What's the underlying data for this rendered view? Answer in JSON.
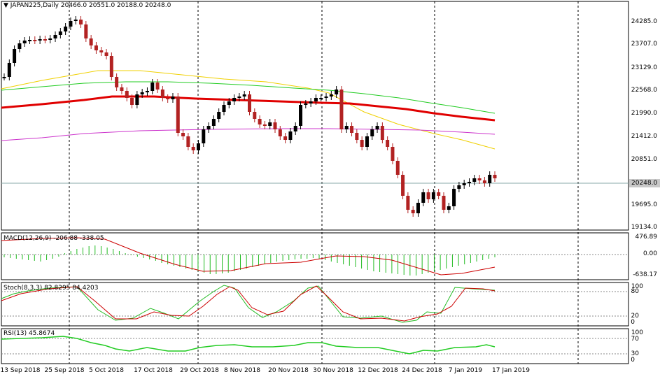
{
  "header": {
    "symbol_label": "JAPAN225,Daily",
    "ohlc": "20466.0 20551.0 20188.0 20248.0"
  },
  "price_axis": [
    "24285.0",
    "23707.0",
    "23129.0",
    "22568.0",
    "21990.0",
    "21412.0",
    "20851.0",
    "19695.0",
    "19134.0"
  ],
  "current_price": "20248.0",
  "macd": {
    "label": "MACD(12,26,9) -206.88 -338.05",
    "axis": [
      "476.89",
      "0.00",
      "-638.17"
    ]
  },
  "stoch": {
    "label": "Stoch(8,3,3) 82.8295 84.4203",
    "axis": [
      "100",
      "80",
      "20",
      "0"
    ]
  },
  "rsi": {
    "label": "RSI(13) 45.8674",
    "axis": [
      "100",
      "70",
      "30",
      "0"
    ]
  },
  "dates": [
    "13 Sep 2018",
    "25 Sep 2018",
    "5 Oct 2018",
    "17 Oct 2018",
    "29 Oct 2018",
    "8 Nov 2018",
    "20 Nov 2018",
    "30 Nov 2018",
    "12 Dec 2018",
    "24 Dec 2018",
    "7 Jan 2019",
    "17 Jan 2019"
  ],
  "colors": {
    "bull_candle": "#000000",
    "bear_candle": "#b22222",
    "ma_red": "#e00000",
    "ma_green": "#22cc22",
    "ma_yellow": "#f0d000",
    "ma_magenta": "#cc33cc",
    "signal_red": "#cc0000",
    "histogram": "#22bb22",
    "rsi_line": "#22cc22"
  }
}
